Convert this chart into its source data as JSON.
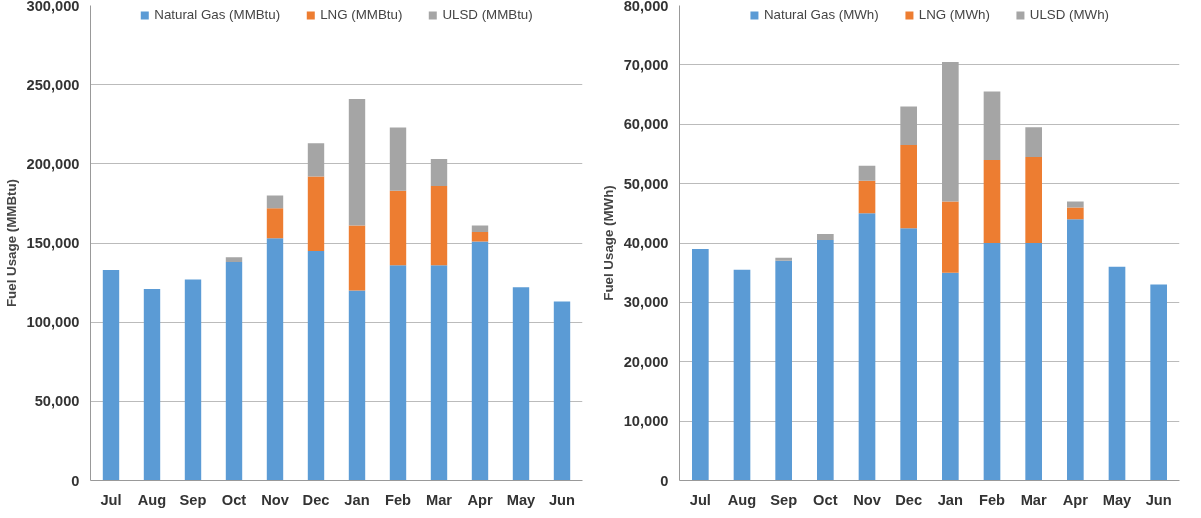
{
  "chart_data": [
    {
      "type": "bar",
      "stacked": true,
      "ylabel": "Fuel Usage (MMBtu)",
      "categories": [
        "Jul",
        "Aug",
        "Sep",
        "Oct",
        "Nov",
        "Dec",
        "Jan",
        "Feb",
        "Mar",
        "Apr",
        "May",
        "Jun"
      ],
      "ylim": [
        0,
        300000
      ],
      "yticks": [
        {
          "value": 0,
          "label": "0"
        },
        {
          "value": 50000,
          "label": "50,000"
        },
        {
          "value": 100000,
          "label": "100,000"
        },
        {
          "value": 150000,
          "label": "150,000"
        },
        {
          "value": 200000,
          "label": "200,000"
        },
        {
          "value": 250000,
          "label": "250,000"
        },
        {
          "value": 300000,
          "label": "300,000"
        }
      ],
      "grid": "y",
      "legend": "top",
      "series": [
        {
          "name": "Natural Gas (MMBtu)",
          "color": "#5b9bd5",
          "values": [
            133000,
            121000,
            127000,
            138000,
            153000,
            145000,
            120000,
            136000,
            136000,
            151000,
            122000,
            113000
          ]
        },
        {
          "name": "LNG (MMBtu)",
          "color": "#ed7d31",
          "values": [
            null,
            null,
            null,
            null,
            19000,
            47000,
            41000,
            47000,
            50000,
            6000,
            null,
            null
          ]
        },
        {
          "name": "ULSD (MMBtu)",
          "color": "#a5a5a5",
          "values": [
            null,
            null,
            null,
            3000,
            8000,
            21000,
            80000,
            40000,
            17000,
            4000,
            null,
            null
          ]
        }
      ]
    },
    {
      "type": "bar",
      "stacked": true,
      "ylabel": "Fuel Usage (MWh)",
      "categories": [
        "Jul",
        "Aug",
        "Sep",
        "Oct",
        "Nov",
        "Dec",
        "Jan",
        "Feb",
        "Mar",
        "Apr",
        "May",
        "Jun"
      ],
      "ylim": [
        0,
        80000
      ],
      "yticks": [
        {
          "value": 0,
          "label": "0"
        },
        {
          "value": 10000,
          "label": "10,000"
        },
        {
          "value": 20000,
          "label": "20,000"
        },
        {
          "value": 30000,
          "label": "30,000"
        },
        {
          "value": 40000,
          "label": "40,000"
        },
        {
          "value": 50000,
          "label": "50,000"
        },
        {
          "value": 60000,
          "label": "60,000"
        },
        {
          "value": 70000,
          "label": "70,000"
        },
        {
          "value": 80000,
          "label": "80,000"
        }
      ],
      "grid": "y",
      "legend": "top",
      "series": [
        {
          "name": "Natural Gas (MWh)",
          "color": "#5b9bd5",
          "values": [
            39000,
            35500,
            37000,
            40500,
            45000,
            42500,
            35000,
            40000,
            40000,
            44000,
            36000,
            33000
          ]
        },
        {
          "name": "LNG (MWh)",
          "color": "#ed7d31",
          "values": [
            null,
            null,
            null,
            null,
            5500,
            14000,
            12000,
            14000,
            14500,
            2000,
            null,
            null
          ]
        },
        {
          "name": "ULSD (MWh)",
          "color": "#a5a5a5",
          "values": [
            null,
            null,
            500,
            1000,
            2500,
            6500,
            23500,
            11500,
            5000,
            1000,
            null,
            null
          ]
        }
      ]
    }
  ]
}
